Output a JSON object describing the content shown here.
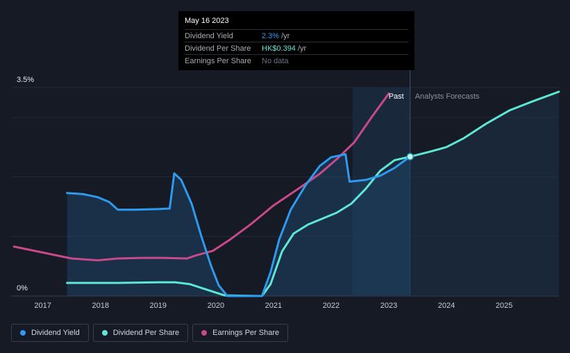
{
  "tooltip": {
    "date": "May 16 2023",
    "rows": [
      {
        "label": "Dividend Yield",
        "value": "2.3%",
        "suffix": "/yr",
        "color": "#2e9bf0"
      },
      {
        "label": "Dividend Per Share",
        "value": "HK$0.394",
        "suffix": "/yr",
        "color": "#5ee8d4"
      },
      {
        "label": "Earnings Per Share",
        "value": "No data",
        "suffix": "",
        "color": "#6d7480"
      }
    ]
  },
  "regions": {
    "past": "Past",
    "forecast": "Analysts Forecasts"
  },
  "legend": [
    {
      "label": "Dividend Yield",
      "color": "#2e9bf0"
    },
    {
      "label": "Dividend Per Share",
      "color": "#5ee8d4"
    },
    {
      "label": "Earnings Per Share",
      "color": "#c94a8a"
    }
  ],
  "chart_data": {
    "type": "line",
    "xlim": [
      2016.45,
      2025.95
    ],
    "y_ticks": [
      "0%",
      "3.5%"
    ],
    "ylim": [
      0,
      3.5
    ],
    "x_ticks": [
      2017,
      2018,
      2019,
      2020,
      2021,
      2022,
      2023,
      2024,
      2025
    ],
    "grid": true,
    "tooltip_at": 2023.37,
    "past_shade_range": [
      2022.37,
      2023.37
    ],
    "series": [
      {
        "name": "Dividend Yield",
        "color": "#2e9bf0",
        "filled": true,
        "points": [
          [
            2017.42,
            1.73
          ],
          [
            2017.7,
            1.71
          ],
          [
            2017.95,
            1.66
          ],
          [
            2018.15,
            1.58
          ],
          [
            2018.22,
            1.52
          ],
          [
            2018.3,
            1.45
          ],
          [
            2018.6,
            1.45
          ],
          [
            2019.0,
            1.46
          ],
          [
            2019.2,
            1.47
          ],
          [
            2019.28,
            2.06
          ],
          [
            2019.4,
            1.95
          ],
          [
            2019.58,
            1.55
          ],
          [
            2019.75,
            1.0
          ],
          [
            2019.92,
            0.5
          ],
          [
            2020.05,
            0.18
          ],
          [
            2020.2,
            0.0
          ],
          [
            2020.8,
            0.0
          ],
          [
            2020.95,
            0.4
          ],
          [
            2021.1,
            0.95
          ],
          [
            2021.3,
            1.45
          ],
          [
            2021.55,
            1.85
          ],
          [
            2021.8,
            2.18
          ],
          [
            2022.0,
            2.33
          ],
          [
            2022.25,
            2.38
          ],
          [
            2022.32,
            1.92
          ],
          [
            2022.6,
            1.95
          ],
          [
            2022.85,
            2.02
          ],
          [
            2023.1,
            2.15
          ],
          [
            2023.37,
            2.34
          ]
        ]
      },
      {
        "name": "Dividend Per Share",
        "color": "#5ee8d4",
        "filled": false,
        "points": [
          [
            2017.42,
            0.22
          ],
          [
            2018.3,
            0.22
          ],
          [
            2019.0,
            0.23
          ],
          [
            2019.3,
            0.23
          ],
          [
            2019.55,
            0.2
          ],
          [
            2019.8,
            0.12
          ],
          [
            2020.15,
            0.01
          ],
          [
            2020.8,
            0.0
          ],
          [
            2020.95,
            0.2
          ],
          [
            2021.15,
            0.75
          ],
          [
            2021.35,
            1.05
          ],
          [
            2021.6,
            1.2
          ],
          [
            2021.9,
            1.32
          ],
          [
            2022.1,
            1.4
          ],
          [
            2022.35,
            1.55
          ],
          [
            2022.6,
            1.8
          ],
          [
            2022.85,
            2.1
          ],
          [
            2023.1,
            2.28
          ],
          [
            2023.37,
            2.34
          ],
          [
            2023.7,
            2.42
          ],
          [
            2024.0,
            2.5
          ],
          [
            2024.3,
            2.65
          ],
          [
            2024.7,
            2.9
          ],
          [
            2025.1,
            3.12
          ],
          [
            2025.5,
            3.27
          ],
          [
            2025.95,
            3.43
          ]
        ]
      },
      {
        "name": "Earnings Per Share",
        "color": "#c94a8a",
        "filled": false,
        "points": [
          [
            2016.5,
            0.83
          ],
          [
            2016.8,
            0.77
          ],
          [
            2017.15,
            0.7
          ],
          [
            2017.5,
            0.63
          ],
          [
            2017.95,
            0.6
          ],
          [
            2018.3,
            0.63
          ],
          [
            2018.7,
            0.64
          ],
          [
            2019.1,
            0.64
          ],
          [
            2019.5,
            0.63
          ],
          [
            2019.65,
            0.68
          ],
          [
            2019.95,
            0.76
          ],
          [
            2020.25,
            0.95
          ],
          [
            2020.6,
            1.2
          ],
          [
            2021.0,
            1.52
          ],
          [
            2021.4,
            1.78
          ],
          [
            2021.8,
            2.05
          ],
          [
            2022.1,
            2.3
          ],
          [
            2022.4,
            2.58
          ],
          [
            2022.7,
            3.0
          ],
          [
            2023.0,
            3.4
          ]
        ]
      }
    ]
  }
}
